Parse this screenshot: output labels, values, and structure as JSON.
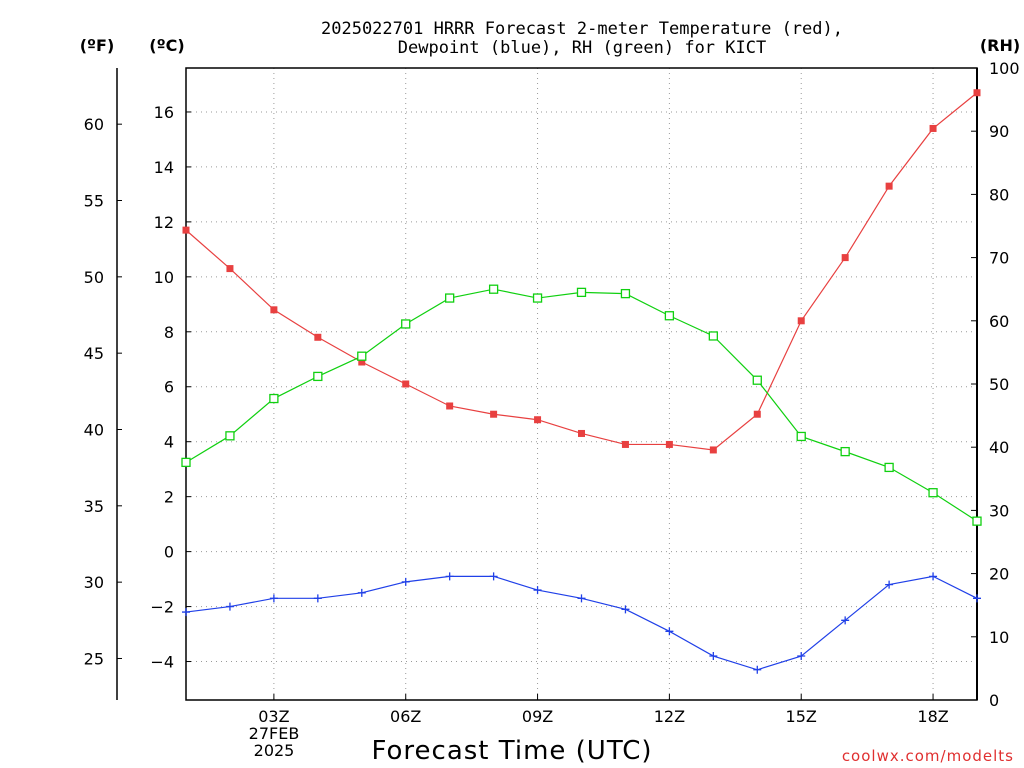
{
  "title_line1": "2025022701 HRRR Forecast 2-meter Temperature (red),",
  "title_line2": "Dewpoint (blue), RH (green) for KICT",
  "units": {
    "f": "(ºF)",
    "c": "(ºC)",
    "rh": "(RH)"
  },
  "x_axis_label": "Forecast Time (UTC)",
  "x_date_label": "27FEB",
  "x_year_label": "2025",
  "credit": "coolwx.com/modelts",
  "colors": {
    "temperature": "#e84040",
    "dewpoint": "#2040e8",
    "rh": "#10d010"
  },
  "chart_data": {
    "type": "line",
    "title": "2025022701 HRRR Forecast 2-meter Temperature (red), Dewpoint (blue), RH (green) for KICT",
    "xlabel": "Forecast Time (UTC)",
    "x_hours": [
      1,
      2,
      3,
      4,
      5,
      6,
      7,
      8,
      9,
      10,
      11,
      12,
      13,
      14,
      15,
      16,
      17,
      18,
      19
    ],
    "xlim": [
      1,
      19
    ],
    "x_ticks": [
      {
        "hour": 3,
        "label": "03Z"
      },
      {
        "hour": 6,
        "label": "06Z"
      },
      {
        "hour": 9,
        "label": "09Z"
      },
      {
        "hour": 12,
        "label": "12Z"
      },
      {
        "hour": 15,
        "label": "15Z"
      },
      {
        "hour": 18,
        "label": "18Z"
      }
    ],
    "y_celsius": {
      "lim": [
        -5.4,
        17.6
      ],
      "ticks": [
        -4,
        -2,
        0,
        2,
        4,
        6,
        8,
        10,
        12,
        14,
        16
      ]
    },
    "y_fahrenheit": {
      "ticks": [
        25,
        30,
        35,
        40,
        45,
        50,
        55,
        60
      ]
    },
    "y_rh": {
      "lim": [
        0,
        100
      ],
      "ticks": [
        0,
        10,
        20,
        30,
        40,
        50,
        60,
        70,
        80,
        90,
        100
      ]
    },
    "grid": true,
    "series": [
      {
        "name": "Temperature (red)",
        "axis": "celsius",
        "marker": "filled-square",
        "values": [
          11.7,
          10.3,
          8.8,
          7.8,
          6.9,
          6.1,
          5.3,
          5.0,
          4.8,
          4.3,
          3.9,
          3.9,
          3.7,
          5.0,
          8.4,
          10.7,
          13.3,
          15.4,
          16.7
        ]
      },
      {
        "name": "Dewpoint (blue)",
        "axis": "celsius",
        "marker": "plus",
        "values": [
          -2.2,
          -2.0,
          -1.7,
          -1.7,
          -1.5,
          -1.1,
          -0.9,
          -0.9,
          -1.4,
          -1.7,
          -2.1,
          -2.9,
          -3.8,
          -4.3,
          -3.8,
          -2.5,
          -1.2,
          -0.9,
          -1.7
        ]
      },
      {
        "name": "RH (green)",
        "axis": "rh",
        "marker": "open-square",
        "values": [
          37.6,
          41.8,
          47.7,
          51.2,
          54.4,
          59.5,
          63.6,
          65.0,
          63.6,
          64.5,
          64.3,
          60.8,
          57.6,
          50.6,
          41.7,
          39.3,
          36.8,
          32.8,
          28.3
        ]
      }
    ]
  }
}
